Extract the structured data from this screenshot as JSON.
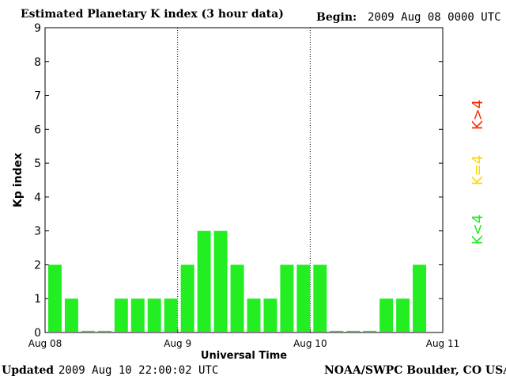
{
  "header": {
    "title": "Estimated Planetary K index (3 hour data)",
    "begin_label": "Begin:",
    "begin_value": "2009 Aug 08 0000 UTC"
  },
  "footer": {
    "updated_label": "Updated",
    "updated_value": "2009 Aug 10 22:00:02 UTC",
    "credit": "NOAA/SWPC Boulder, CO USA"
  },
  "legend": [
    {
      "label": "K>4",
      "color": "#ff2a00"
    },
    {
      "label": "K=4",
      "color": "#ffd700"
    },
    {
      "label": "K<4",
      "color": "#22ee22"
    }
  ],
  "chart_data": {
    "type": "bar",
    "title": "Estimated Planetary K index (3 hour data)",
    "xlabel": "Universal Time",
    "ylabel": "Kp index",
    "ylim": [
      0,
      9
    ],
    "yticks": [
      "0",
      "1",
      "2",
      "3",
      "4",
      "5",
      "6",
      "7",
      "8",
      "9"
    ],
    "xticks": [
      "Aug 08",
      "Aug 9",
      "Aug 10",
      "Aug 11"
    ],
    "interval_hours": 3,
    "days": 3,
    "bar_color": "#22ee22",
    "values": [
      2,
      1,
      0,
      0,
      1,
      1,
      1,
      1,
      2,
      3,
      3,
      2,
      1,
      1,
      2,
      2,
      2,
      0,
      0,
      0,
      1,
      1,
      2
    ],
    "grid": false,
    "legend_position": "right"
  }
}
